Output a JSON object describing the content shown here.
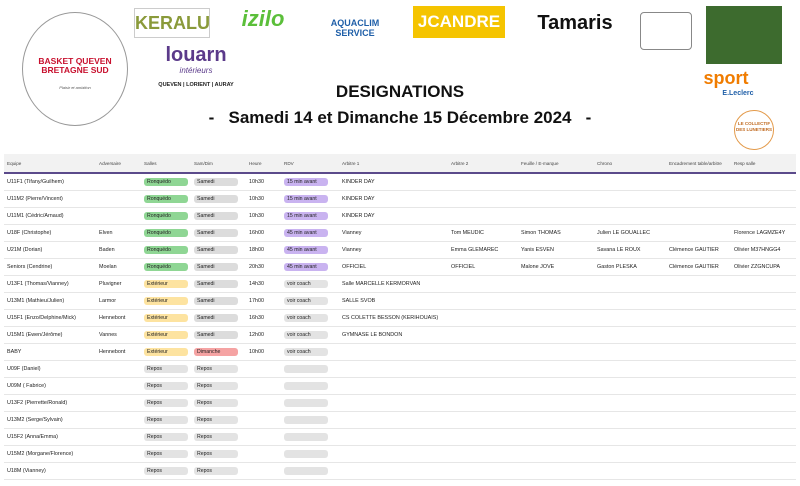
{
  "header": {
    "club_name": "BASKET QUEVEN BRETAGNE SUD",
    "club_motto": "Plaisir et ambition",
    "sponsors": [
      "KERALU",
      "izilo",
      "AQUACLIM SERVICE",
      "JCANDRE",
      "Tamaris",
      "louarn",
      "intérieurs",
      "QUEVEN | LORIENT | AURAY",
      "sport",
      "E.Leclerc",
      "LE COLLECTIF DES LUNETIERS"
    ],
    "title": "DESIGNATIONS",
    "subtitle": "-   Samedi 14 et Dimanche 15 Décembre 2024   -"
  },
  "table": {
    "columns": [
      "Equipe",
      "Adversaire",
      "Salles",
      "Sam/Dim",
      "Heure",
      "RDV",
      "Arbitre 1",
      "Arbitre 2",
      "Feuille / E-marque",
      "Chrono",
      "Encadrement table/arbitre",
      "Resp salle"
    ],
    "rows": [
      {
        "cells": [
          "U11F1 (Tifany/Guilhem)",
          null,
          "Ronquédo",
          "Samedi",
          "10h30",
          "15 min avant",
          "KINDER DAY",
          null,
          null,
          null,
          null,
          null
        ],
        "chips": [
          null,
          null,
          "#8fd694",
          "#dcdcdc",
          null,
          "#c9b3f0",
          null,
          null,
          null,
          null,
          null,
          null
        ]
      },
      {
        "cells": [
          "U11M2 (Pierre/Vincent)",
          null,
          "Ronquédo",
          "Samedi",
          "10h30",
          "15 min avant",
          "KINDER DAY",
          null,
          null,
          null,
          null,
          null
        ],
        "chips": [
          null,
          null,
          "#8fd694",
          "#dcdcdc",
          null,
          "#c9b3f0",
          null,
          null,
          null,
          null,
          null,
          null
        ]
      },
      {
        "cells": [
          "U11M1 (Cédric/Arnaud)",
          null,
          "Ronquédo",
          "Samedi",
          "10h30",
          "15 min avant",
          "KINDER DAY",
          null,
          null,
          null,
          null,
          null
        ],
        "chips": [
          null,
          null,
          "#8fd694",
          "#dcdcdc",
          null,
          "#c9b3f0",
          null,
          null,
          null,
          null,
          null,
          null
        ]
      },
      {
        "cells": [
          "U18F (Christophe)",
          "Elven",
          "Ronquédo",
          "Samedi",
          "16h00",
          "45 min avant",
          "Vianney",
          "Tom MEUDIC",
          "Simon THOMAS",
          "Julien LE GOUALLEC",
          null,
          "Florence LAGMZE4Y"
        ],
        "chips": [
          null,
          null,
          "#8fd694",
          "#dcdcdc",
          null,
          "#c9b3f0",
          null,
          null,
          null,
          null,
          null,
          null
        ]
      },
      {
        "cells": [
          "U21M (Dorian)",
          "Baden",
          "Ronquédo",
          "Samedi",
          "18h00",
          "45 min avant",
          "Vianney",
          "Emma GLEMAREC",
          "Yanis ESVEN",
          "Savana LE ROUX",
          "Clémence GAUTIER",
          "Olivier M37HNGG4"
        ],
        "chips": [
          null,
          null,
          "#8fd694",
          "#dcdcdc",
          null,
          "#c9b3f0",
          null,
          null,
          null,
          null,
          null,
          null
        ]
      },
      {
        "cells": [
          "Seniors (Cendrine)",
          "Moelan",
          "Ronquédo",
          "Samedi",
          "20h30",
          "45 min avant",
          "OFFICIEL",
          "OFFICIEL",
          "Malone JOVE",
          "Gaston PLESKA",
          "Clémence GAUTIER",
          "Olivier ZZGNCUPA"
        ],
        "chips": [
          null,
          null,
          "#8fd694",
          "#dcdcdc",
          null,
          "#c9b3f0",
          null,
          null,
          null,
          null,
          null,
          null
        ]
      },
      {
        "cells": [
          "U13F1 (Thomas/Vianney)",
          "Pluvigner",
          "Extérieur",
          "Samedi",
          "14h30",
          "voir coach",
          "Salle MARCELLE KERMORVAN",
          null,
          null,
          null,
          null,
          null
        ],
        "chips": [
          null,
          null,
          "#fde3a0",
          "#dcdcdc",
          null,
          "#e3e3e3",
          null,
          null,
          null,
          null,
          null,
          null
        ]
      },
      {
        "cells": [
          "U13M1 (Mathieu/Julien)",
          "Larmor",
          "Extérieur",
          "Samedi",
          "17h00",
          "voir coach",
          "SALLE SVOB",
          null,
          null,
          null,
          null,
          null
        ],
        "chips": [
          null,
          null,
          "#fde3a0",
          "#dcdcdc",
          null,
          "#e3e3e3",
          null,
          null,
          null,
          null,
          null,
          null
        ]
      },
      {
        "cells": [
          "U15F1 (Enzo/Delphine/Mick)",
          "Hennebont",
          "Extérieur",
          "Samedi",
          "16h30",
          "voir coach",
          "CS COLETTE BESSON (KERIHOUAIS)",
          null,
          null,
          null,
          null,
          null
        ],
        "chips": [
          null,
          null,
          "#fde3a0",
          "#dcdcdc",
          null,
          "#e3e3e3",
          null,
          null,
          null,
          null,
          null,
          null
        ]
      },
      {
        "cells": [
          "U15M1 (Ewen/Jérôme)",
          "Vannes",
          "Extérieur",
          "Samedi",
          "12h00",
          "voir coach",
          "GYMNASE LE BONDON",
          null,
          null,
          null,
          null,
          null
        ],
        "chips": [
          null,
          null,
          "#fde3a0",
          "#dcdcdc",
          null,
          "#e3e3e3",
          null,
          null,
          null,
          null,
          null,
          null
        ]
      },
      {
        "cells": [
          "BABY",
          "Hennebont",
          "Extérieur",
          "Dimanche",
          "10h00",
          "voir coach",
          null,
          null,
          null,
          null,
          null,
          null
        ],
        "chips": [
          null,
          null,
          "#fde3a0",
          "#f5a3a3",
          null,
          "#e3e3e3",
          null,
          null,
          null,
          null,
          null,
          null
        ]
      },
      {
        "cells": [
          "U09F (Daniel)",
          null,
          "Repos",
          "Repos",
          null,
          null,
          null,
          null,
          null,
          null,
          null,
          null
        ],
        "chips": [
          null,
          null,
          "#e3e3e3",
          "#e3e3e3",
          null,
          "#e3e3e3",
          null,
          null,
          null,
          null,
          null,
          null
        ]
      },
      {
        "cells": [
          "U09M ( Fabrice)",
          null,
          "Repos",
          "Repos",
          null,
          null,
          null,
          null,
          null,
          null,
          null,
          null
        ],
        "chips": [
          null,
          null,
          "#e3e3e3",
          "#e3e3e3",
          null,
          "#e3e3e3",
          null,
          null,
          null,
          null,
          null,
          null
        ]
      },
      {
        "cells": [
          "U13F2 (Pierrette/Ronald)",
          null,
          "Repos",
          "Repos",
          null,
          null,
          null,
          null,
          null,
          null,
          null,
          null
        ],
        "chips": [
          null,
          null,
          "#e3e3e3",
          "#e3e3e3",
          null,
          "#e3e3e3",
          null,
          null,
          null,
          null,
          null,
          null
        ]
      },
      {
        "cells": [
          "U13M2 (Serge/Sylvain)",
          null,
          "Repos",
          "Repos",
          null,
          null,
          null,
          null,
          null,
          null,
          null,
          null
        ],
        "chips": [
          null,
          null,
          "#e3e3e3",
          "#e3e3e3",
          null,
          "#e3e3e3",
          null,
          null,
          null,
          null,
          null,
          null
        ]
      },
      {
        "cells": [
          "U15F2 (Anna/Emma)",
          null,
          "Repos",
          "Repos",
          null,
          null,
          null,
          null,
          null,
          null,
          null,
          null
        ],
        "chips": [
          null,
          null,
          "#e3e3e3",
          "#e3e3e3",
          null,
          "#e3e3e3",
          null,
          null,
          null,
          null,
          null,
          null
        ]
      },
      {
        "cells": [
          "U15M2 (Morgane/Florence)",
          null,
          "Repos",
          "Repos",
          null,
          null,
          null,
          null,
          null,
          null,
          null,
          null
        ],
        "chips": [
          null,
          null,
          "#e3e3e3",
          "#e3e3e3",
          null,
          "#e3e3e3",
          null,
          null,
          null,
          null,
          null,
          null
        ]
      },
      {
        "cells": [
          "U18M (Vianney)",
          null,
          "Repos",
          "Repos",
          null,
          null,
          null,
          null,
          null,
          null,
          null,
          null
        ],
        "chips": [
          null,
          null,
          "#e3e3e3",
          "#e3e3e3",
          null,
          "#e3e3e3",
          null,
          null,
          null,
          null,
          null,
          null
        ]
      }
    ]
  }
}
